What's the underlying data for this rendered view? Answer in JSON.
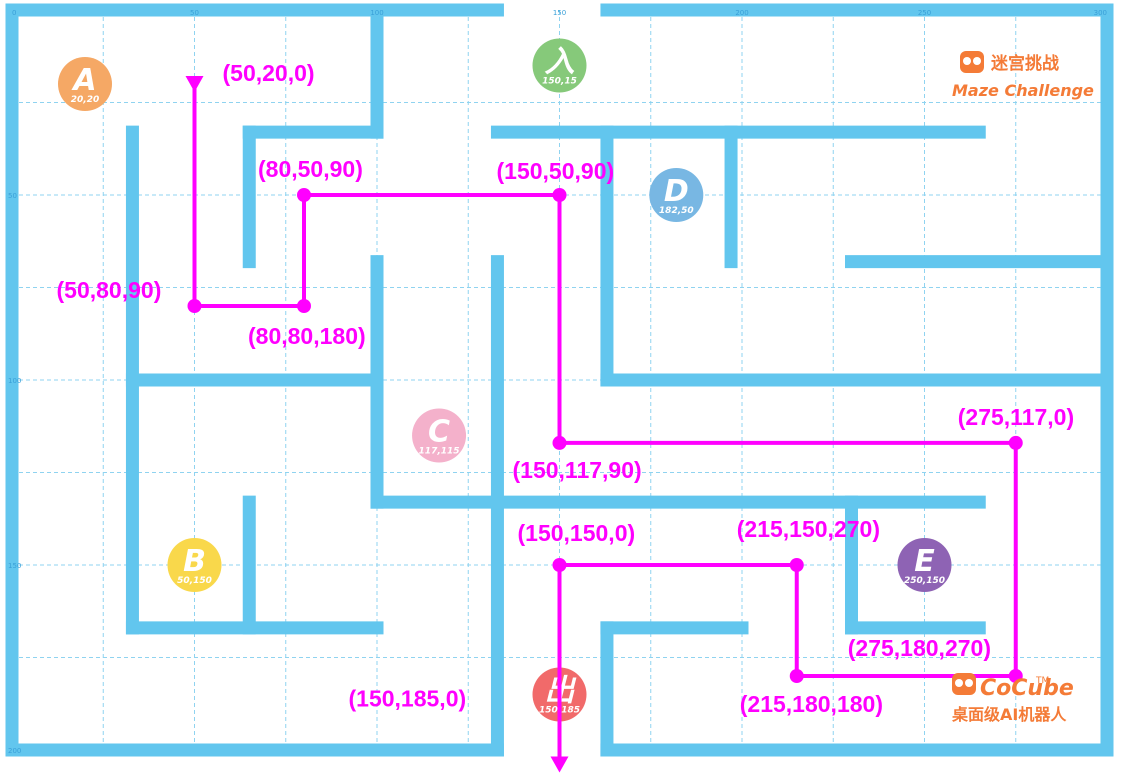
{
  "colors": {
    "wall": "#62c6ee",
    "grid": "#8fd3f0",
    "path": "#ff00ff",
    "brand": "#f47b37"
  },
  "axis": {
    "x_ticks": [
      "0",
      "50",
      "100",
      "150",
      "200",
      "250",
      "300"
    ],
    "y_ticks": [
      "0",
      "50",
      "100",
      "150",
      "200"
    ]
  },
  "markers": [
    {
      "id": "A",
      "letter": "A",
      "coord": "20,20",
      "color": "#f5a865",
      "x": 20,
      "y": 20
    },
    {
      "id": "entrance",
      "letter": "入",
      "coord": "150,15",
      "color": "#86c97a",
      "x": 150,
      "y": 15
    },
    {
      "id": "D",
      "letter": "D",
      "coord": "182,50",
      "color": "#78b7e3",
      "x": 182,
      "y": 50
    },
    {
      "id": "C",
      "letter": "C",
      "coord": "117,115",
      "color": "#f4b1cb",
      "x": 117,
      "y": 115
    },
    {
      "id": "B",
      "letter": "B",
      "coord": "50,150",
      "color": "#f9d84b",
      "x": 50,
      "y": 150
    },
    {
      "id": "E",
      "letter": "E",
      "coord": "250,150",
      "color": "#8e63b4",
      "x": 250,
      "y": 150
    },
    {
      "id": "exit",
      "letter": "出",
      "coord": "150,185",
      "color": "#f16a6a",
      "x": 150,
      "y": 185
    }
  ],
  "path_points": [
    [
      50,
      20
    ],
    [
      50,
      80
    ],
    [
      80,
      80
    ],
    [
      80,
      50
    ],
    [
      150,
      50
    ],
    [
      150,
      117
    ],
    [
      275,
      117
    ],
    [
      275,
      180
    ],
    [
      215,
      180
    ],
    [
      215,
      150
    ],
    [
      150,
      150
    ],
    [
      150,
      205
    ]
  ],
  "waypoints": [
    {
      "label": "(50,20,0)",
      "x": 50,
      "y": 20,
      "dot": false
    },
    {
      "label": "(80,50,90)",
      "x": 80,
      "y": 50,
      "dot": true
    },
    {
      "label": "(150,50,90)",
      "x": 150,
      "y": 50,
      "dot": true
    },
    {
      "label": "(50,80,90)",
      "x": 50,
      "y": 80,
      "dot": true
    },
    {
      "label": "(80,80,180)",
      "x": 80,
      "y": 80,
      "dot": true
    },
    {
      "label": "(150,117,90)",
      "x": 150,
      "y": 117,
      "dot": true
    },
    {
      "label": "(275,117,0)",
      "x": 275,
      "y": 117,
      "dot": true
    },
    {
      "label": "(150,150,0)",
      "x": 150,
      "y": 150,
      "dot": true
    },
    {
      "label": "(215,150,270)",
      "x": 215,
      "y": 150,
      "dot": true
    },
    {
      "label": "(275,180,270)",
      "x": 275,
      "y": 180,
      "dot": true
    },
    {
      "label": "(215,180,180)",
      "x": 215,
      "y": 180,
      "dot": true
    },
    {
      "label": "(150,185,0)",
      "x": 150,
      "y": 185,
      "dot": false
    }
  ],
  "branding": {
    "maze_cn": "迷宫挑战",
    "maze_en": "Maze Challenge",
    "cocube": "CoCube",
    "tm": "TM",
    "cocube_cn": "桌面级AI机器人"
  }
}
